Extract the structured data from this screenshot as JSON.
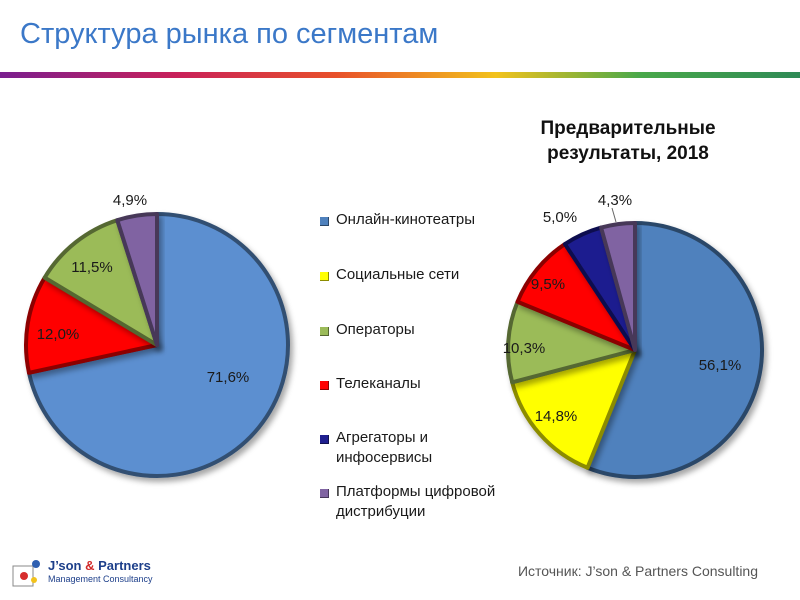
{
  "slide": {
    "title": "Структура рынка по сегментам",
    "source": "Источник: J’son & Partners Consulting"
  },
  "logo": {
    "name_part1": "J’son",
    "name_amp": "&",
    "name_part2": "Partners",
    "subtitle": "Management Consultancy"
  },
  "legend": {
    "items": [
      {
        "label": "Онлайн-кинотеатры",
        "color": "#4f81bd"
      },
      {
        "label": "Социальные сети",
        "color": "#ffff00"
      },
      {
        "label": "Операторы",
        "color": "#9bbb59"
      },
      {
        "label": "Телеканалы",
        "color": "#ff0000"
      },
      {
        "label": "Агрегаторы и инфосервисы",
        "color": "#1f1f8f"
      },
      {
        "label": "Платформы цифровой дистрибуции",
        "color": "#8064a2"
      }
    ]
  },
  "chart_data": [
    {
      "type": "pie",
      "title": "",
      "slices": [
        {
          "category": "Онлайн-кинотеатры",
          "value": 71.6,
          "label": "71,6%",
          "color": "#5b8fd0"
        },
        {
          "category": "Телеканалы",
          "value": 12.0,
          "label": "12,0%",
          "color": "#ff0000"
        },
        {
          "category": "Операторы",
          "value": 11.5,
          "label": "11,5%",
          "color": "#9bbb59"
        },
        {
          "category": "Платформы цифровой дистрибуции",
          "value": 4.9,
          "label": "4,9%",
          "color": "#8064a2"
        }
      ]
    },
    {
      "type": "pie",
      "title": "Предварительные результаты, 2018",
      "slices": [
        {
          "category": "Онлайн-кинотеатры",
          "value": 56.1,
          "label": "56,1%",
          "color": "#4f81bd"
        },
        {
          "category": "Социальные сети",
          "value": 14.8,
          "label": "14,8%",
          "color": "#ffff00"
        },
        {
          "category": "Операторы",
          "value": 10.3,
          "label": "10,3%",
          "color": "#9bbb59"
        },
        {
          "category": "Телеканалы",
          "value": 9.5,
          "label": "9,5%",
          "color": "#ff0000"
        },
        {
          "category": "Агрегаторы и инфосервисы",
          "value": 5.0,
          "label": "5,0%",
          "color": "#1f1f8f"
        },
        {
          "category": "Платформы цифровой дистрибуции",
          "value": 4.3,
          "label": "4,3%",
          "color": "#8064a2"
        }
      ]
    }
  ]
}
